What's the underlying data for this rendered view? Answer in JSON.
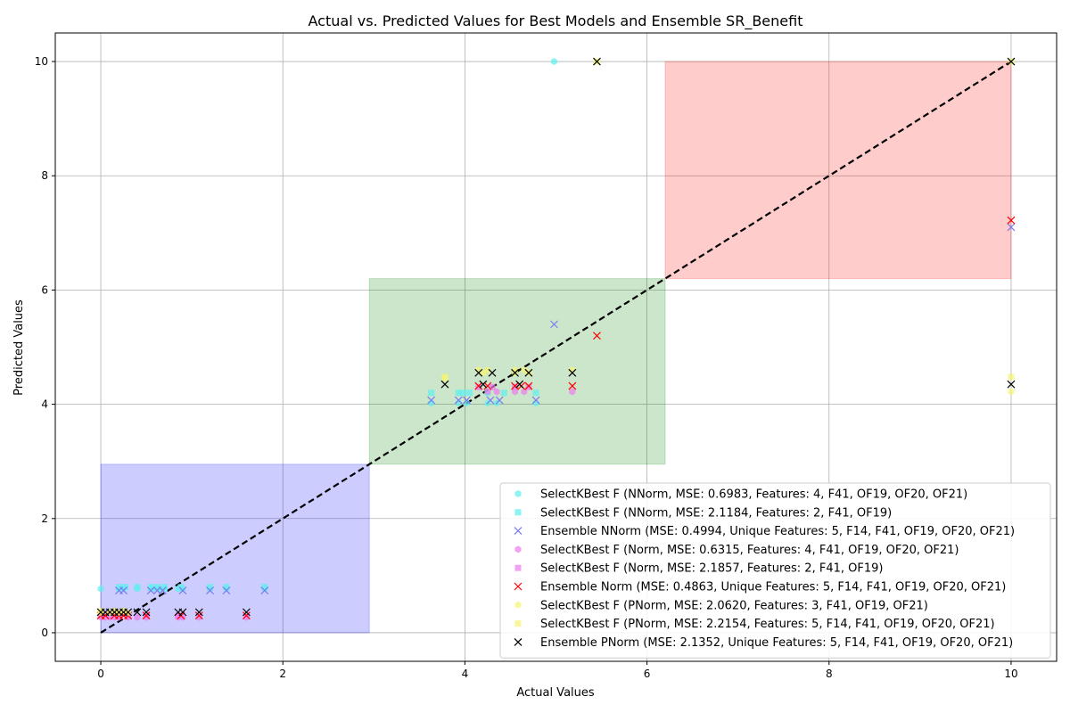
{
  "chart_data": {
    "type": "scatter",
    "title": "Actual vs. Predicted Values for Best Models and Ensemble SR_Benefit",
    "xlabel": "Actual Values",
    "ylabel": "Predicted Values",
    "xlim": [
      -0.5,
      10.5
    ],
    "ylim": [
      -0.5,
      10.5
    ],
    "xticks": [
      0,
      2,
      4,
      6,
      8,
      10
    ],
    "yticks": [
      0,
      2,
      4,
      6,
      8,
      10
    ],
    "grid": true,
    "legend_position": "lower-right",
    "regions": [
      {
        "x": [
          0,
          2.95
        ],
        "y": [
          0,
          2.95
        ],
        "color": "#0000ff"
      },
      {
        "x": [
          2.95,
          6.2
        ],
        "y": [
          2.95,
          6.2
        ],
        "color": "#008000"
      },
      {
        "x": [
          6.2,
          10
        ],
        "y": [
          6.2,
          10
        ],
        "color": "#ff0000"
      }
    ],
    "reference_line": {
      "x": [
        0,
        10
      ],
      "y": [
        0,
        10
      ],
      "color": "#000000",
      "style": "dashed"
    },
    "series": [
      {
        "name": "SelectKBest F (NNorm, MSE: 0.6983, Features: 4, F41, OF19, OF20, OF21)",
        "marker": "hexagon",
        "color": "#5cf0f0",
        "points": [
          [
            0,
            0.77
          ],
          [
            0.2,
            0.77
          ],
          [
            0.25,
            0.77
          ],
          [
            0.4,
            0.77
          ],
          [
            0.55,
            0.77
          ],
          [
            0.6,
            0.77
          ],
          [
            0.65,
            0.77
          ],
          [
            0.7,
            0.77
          ],
          [
            0.85,
            0.77
          ],
          [
            0.9,
            0.77
          ],
          [
            1.2,
            0.77
          ],
          [
            1.38,
            0.77
          ],
          [
            1.8,
            0.77
          ],
          [
            3.63,
            4.02
          ],
          [
            3.93,
            4.02
          ],
          [
            4.02,
            4.02
          ],
          [
            4.25,
            4.02
          ],
          [
            4.35,
            4.02
          ],
          [
            4.78,
            4.02
          ],
          [
            4.98,
            10
          ]
        ]
      },
      {
        "name": "SelectKBest F (NNorm, MSE: 2.1184, Features: 2, F41, OF19)",
        "marker": "square",
        "color": "#5cf0f0",
        "points": [
          [
            0.2,
            0.8
          ],
          [
            0.27,
            0.8
          ],
          [
            0.4,
            0.8
          ],
          [
            0.55,
            0.8
          ],
          [
            0.62,
            0.8
          ],
          [
            0.7,
            0.8
          ],
          [
            0.88,
            0.8
          ],
          [
            1.2,
            0.8
          ],
          [
            1.38,
            0.8
          ],
          [
            1.8,
            0.8
          ],
          [
            3.63,
            4.2
          ],
          [
            3.93,
            4.2
          ],
          [
            3.98,
            4.2
          ],
          [
            4.05,
            4.2
          ],
          [
            4.25,
            4.2
          ],
          [
            4.43,
            4.2
          ],
          [
            4.78,
            4.2
          ]
        ]
      },
      {
        "name": "Ensemble NNorm (MSE: 0.4994, Unique Features: 5, F14, F41, OF19, OF20, OF21)",
        "marker": "x",
        "color": "#7b7bf0",
        "points": [
          [
            0.2,
            0.74
          ],
          [
            0.25,
            0.74
          ],
          [
            0.55,
            0.74
          ],
          [
            0.62,
            0.74
          ],
          [
            0.68,
            0.74
          ],
          [
            0.9,
            0.74
          ],
          [
            1.2,
            0.74
          ],
          [
            1.38,
            0.74
          ],
          [
            1.8,
            0.74
          ],
          [
            3.63,
            4.07
          ],
          [
            3.93,
            4.07
          ],
          [
            4.02,
            4.07
          ],
          [
            4.28,
            4.07
          ],
          [
            4.38,
            4.07
          ],
          [
            4.78,
            4.07
          ],
          [
            4.98,
            5.4
          ],
          [
            10,
            7.1
          ]
        ]
      },
      {
        "name": "SelectKBest F (Norm, MSE: 0.6315, Features: 4, F41, OF19, OF20, OF21)",
        "marker": "hexagon",
        "color": "#ee7bee",
        "points": [
          [
            0,
            0.27
          ],
          [
            0.05,
            0.27
          ],
          [
            0.1,
            0.27
          ],
          [
            0.15,
            0.27
          ],
          [
            0.2,
            0.27
          ],
          [
            0.3,
            0.27
          ],
          [
            0.4,
            0.27
          ],
          [
            0.5,
            0.27
          ],
          [
            0.85,
            0.27
          ],
          [
            0.9,
            0.27
          ],
          [
            1.08,
            0.27
          ],
          [
            1.6,
            0.27
          ],
          [
            4.25,
            4.22
          ],
          [
            4.35,
            4.22
          ],
          [
            4.55,
            4.22
          ],
          [
            4.65,
            4.22
          ],
          [
            5.18,
            4.22
          ]
        ]
      },
      {
        "name": "SelectKBest F (Norm, MSE: 2.1857, Features: 2, F41, OF19)",
        "marker": "square",
        "color": "#ee7bee",
        "points": [
          [
            0,
            0.3
          ],
          [
            0.1,
            0.3
          ],
          [
            0.2,
            0.3
          ],
          [
            0.3,
            0.3
          ],
          [
            0.5,
            0.3
          ],
          [
            0.85,
            0.3
          ],
          [
            4.15,
            4.3
          ],
          [
            4.3,
            4.3
          ],
          [
            4.55,
            4.3
          ],
          [
            4.7,
            4.3
          ]
        ]
      },
      {
        "name": "Ensemble Norm (MSE: 0.4863, Unique Features: 5, F14, F41, OF19, OF20, OF21)",
        "marker": "x",
        "color": "#ff0000",
        "points": [
          [
            0,
            0.3
          ],
          [
            0.05,
            0.3
          ],
          [
            0.15,
            0.3
          ],
          [
            0.2,
            0.3
          ],
          [
            0.25,
            0.3
          ],
          [
            0.3,
            0.3
          ],
          [
            0.5,
            0.3
          ],
          [
            0.88,
            0.3
          ],
          [
            1.08,
            0.3
          ],
          [
            1.6,
            0.3
          ],
          [
            4.15,
            4.32
          ],
          [
            4.25,
            4.32
          ],
          [
            4.55,
            4.32
          ],
          [
            4.62,
            4.32
          ],
          [
            4.7,
            4.32
          ],
          [
            5.18,
            4.32
          ],
          [
            5.45,
            5.2
          ],
          [
            10,
            7.22
          ]
        ]
      },
      {
        "name": "SelectKBest F (PNorm, MSE: 2.0620, Features: 3, F41, OF19, OF21)",
        "marker": "hexagon",
        "color": "#f5f570",
        "points": [
          [
            0,
            0.35
          ],
          [
            0.1,
            0.35
          ],
          [
            0.2,
            0.35
          ],
          [
            0.3,
            0.35
          ],
          [
            3.78,
            4.45
          ],
          [
            4.15,
            4.6
          ],
          [
            4.25,
            4.6
          ],
          [
            4.55,
            4.6
          ],
          [
            4.65,
            4.6
          ],
          [
            5.18,
            4.6
          ],
          [
            10,
            4.22
          ]
        ]
      },
      {
        "name": "SelectKBest F (PNorm, MSE: 2.2154, Features: 5, F14, F41, OF19, OF20, OF21)",
        "marker": "square",
        "color": "#f5f570",
        "points": [
          [
            0,
            0.38
          ],
          [
            0.15,
            0.38
          ],
          [
            0.25,
            0.38
          ],
          [
            3.78,
            4.48
          ],
          [
            4.2,
            4.55
          ],
          [
            4.55,
            4.55
          ],
          [
            4.7,
            4.55
          ],
          [
            5.45,
            10
          ],
          [
            10,
            10
          ],
          [
            10,
            4.48
          ]
        ]
      },
      {
        "name": "Ensemble PNorm (MSE: 2.1352, Unique Features: 5, F14, F41, OF19, OF20, OF21)",
        "marker": "x",
        "color": "#000000",
        "points": [
          [
            0,
            0.36
          ],
          [
            0.05,
            0.36
          ],
          [
            0.1,
            0.36
          ],
          [
            0.15,
            0.36
          ],
          [
            0.2,
            0.36
          ],
          [
            0.25,
            0.36
          ],
          [
            0.3,
            0.36
          ],
          [
            0.4,
            0.36
          ],
          [
            0.5,
            0.36
          ],
          [
            0.85,
            0.36
          ],
          [
            0.9,
            0.36
          ],
          [
            1.08,
            0.36
          ],
          [
            1.6,
            0.36
          ],
          [
            3.78,
            4.35
          ],
          [
            4.15,
            4.55
          ],
          [
            4.2,
            4.35
          ],
          [
            4.3,
            4.55
          ],
          [
            4.55,
            4.55
          ],
          [
            4.6,
            4.35
          ],
          [
            4.7,
            4.55
          ],
          [
            5.18,
            4.55
          ],
          [
            5.45,
            10
          ],
          [
            10,
            10
          ],
          [
            10,
            4.35
          ]
        ]
      }
    ]
  }
}
